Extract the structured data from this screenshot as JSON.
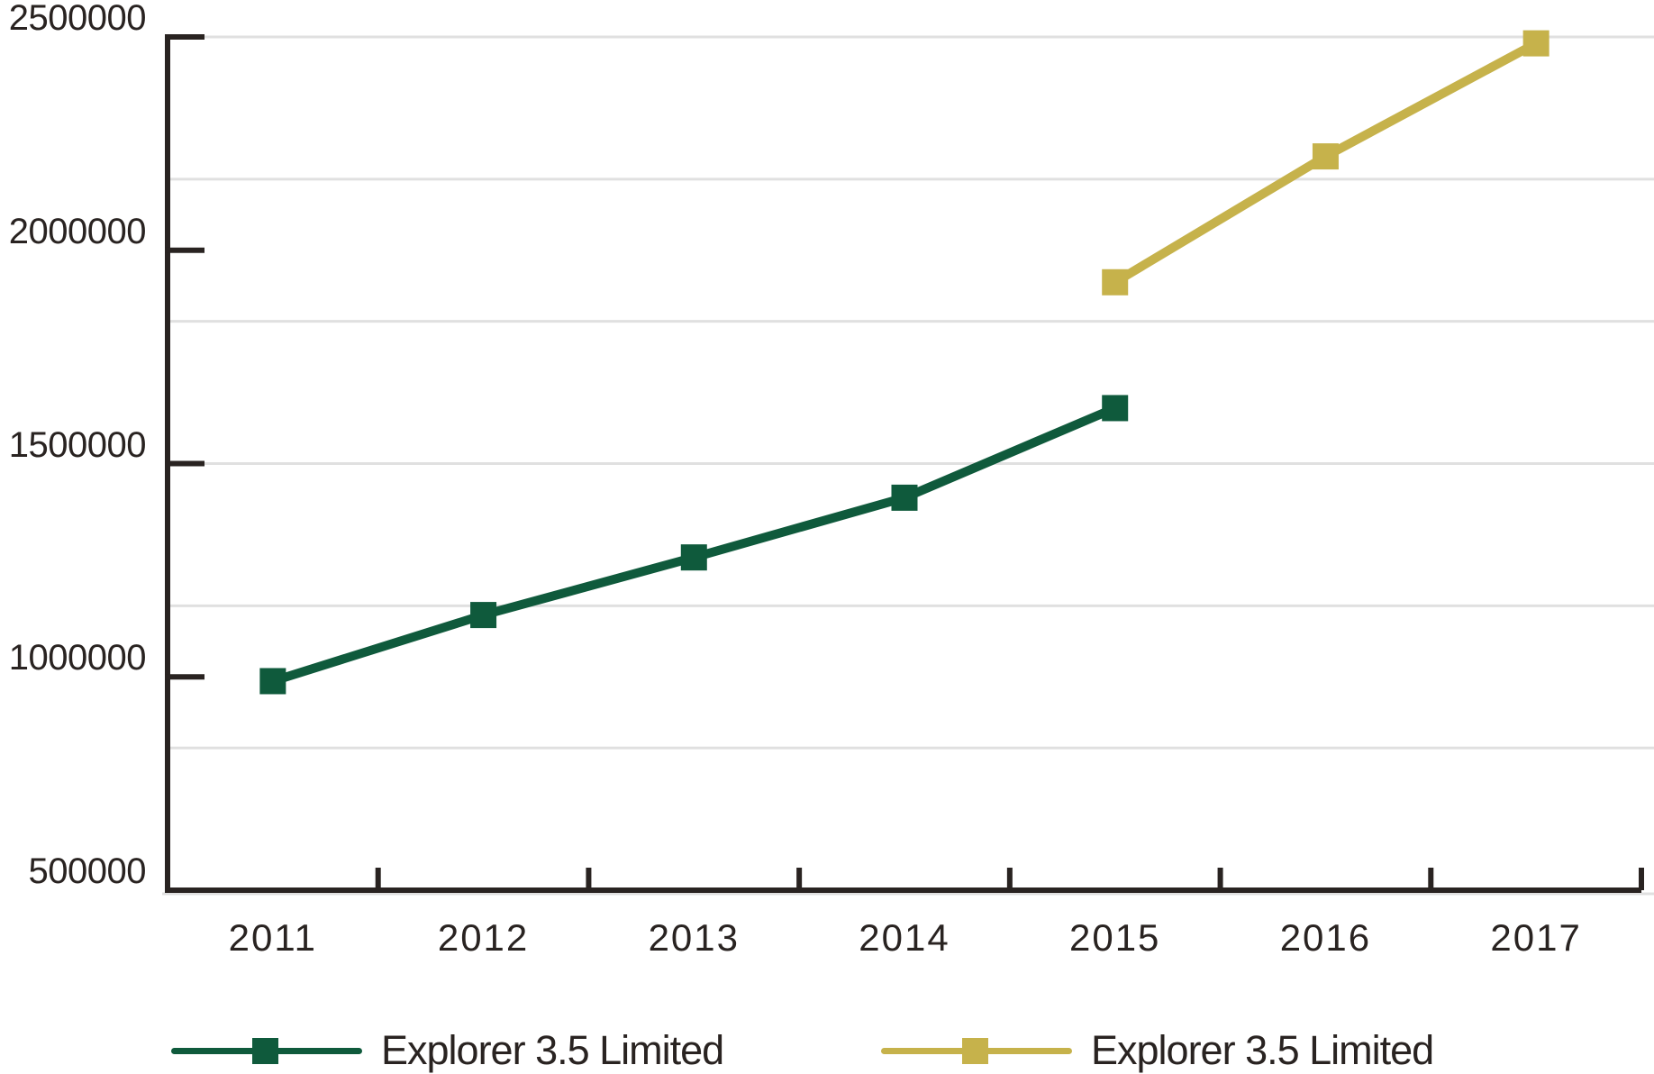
{
  "chart_data": {
    "type": "line",
    "title": "",
    "xlabel": "",
    "ylabel": "",
    "x_categories": [
      "2011",
      "2012",
      "2013",
      "2014",
      "2015",
      "2016",
      "2017"
    ],
    "y_tick_labels": [
      "2500000",
      "2000000",
      "1500000",
      "1000000",
      "500000"
    ],
    "y_tick_values": [
      2500000,
      2000000,
      1500000,
      1000000,
      500000
    ],
    "ylim": [
      500000,
      2500000
    ],
    "grid_on": true,
    "grid_divisions": 6,
    "legend_position": "bottom",
    "series": [
      {
        "name": "Explorer 3.5 Limited",
        "color": "#0f5a3c",
        "marker": "square",
        "points": [
          {
            "x": "2011",
            "y": 990000
          },
          {
            "x": "2012",
            "y": 1145000
          },
          {
            "x": "2013",
            "y": 1280000
          },
          {
            "x": "2014",
            "y": 1420000
          },
          {
            "x": "2015",
            "y": 1630000
          }
        ]
      },
      {
        "name": "Explorer 3.5 Limited",
        "color": "#c6b24b",
        "marker": "square",
        "points": [
          {
            "x": "2015",
            "y": 1925000
          },
          {
            "x": "2016",
            "y": 2220000
          },
          {
            "x": "2017",
            "y": 2485000
          }
        ]
      }
    ]
  },
  "colors": {
    "background": "#ffffff",
    "axis": "#292321",
    "grid": "#e0e0e0",
    "text": "#292321",
    "series_green": "#0f5a3c",
    "series_gold": "#c6b24b"
  }
}
